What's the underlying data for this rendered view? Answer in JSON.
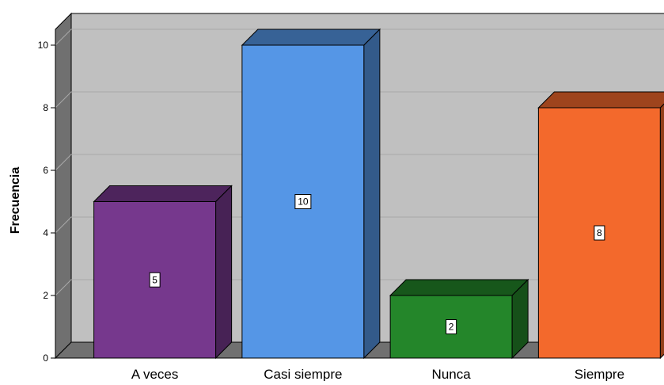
{
  "chart_data": {
    "type": "bar",
    "style": "3d",
    "ylabel": "Frecuencia",
    "xlabel": "",
    "categories": [
      "A veces",
      "Casi siempre",
      "Nunca",
      "Siempre"
    ],
    "values": [
      5,
      10,
      2,
      8
    ],
    "data_labels": [
      "5",
      "10",
      "2",
      "8"
    ],
    "ylim": [
      0,
      10
    ],
    "yticks": [
      "0",
      "2",
      "4",
      "6",
      "8",
      "10"
    ],
    "grid": true,
    "legend": "none",
    "colors": [
      "#76388D",
      "#5596E6",
      "#24862A",
      "#F3692C"
    ],
    "background": "#C0C0C0"
  }
}
